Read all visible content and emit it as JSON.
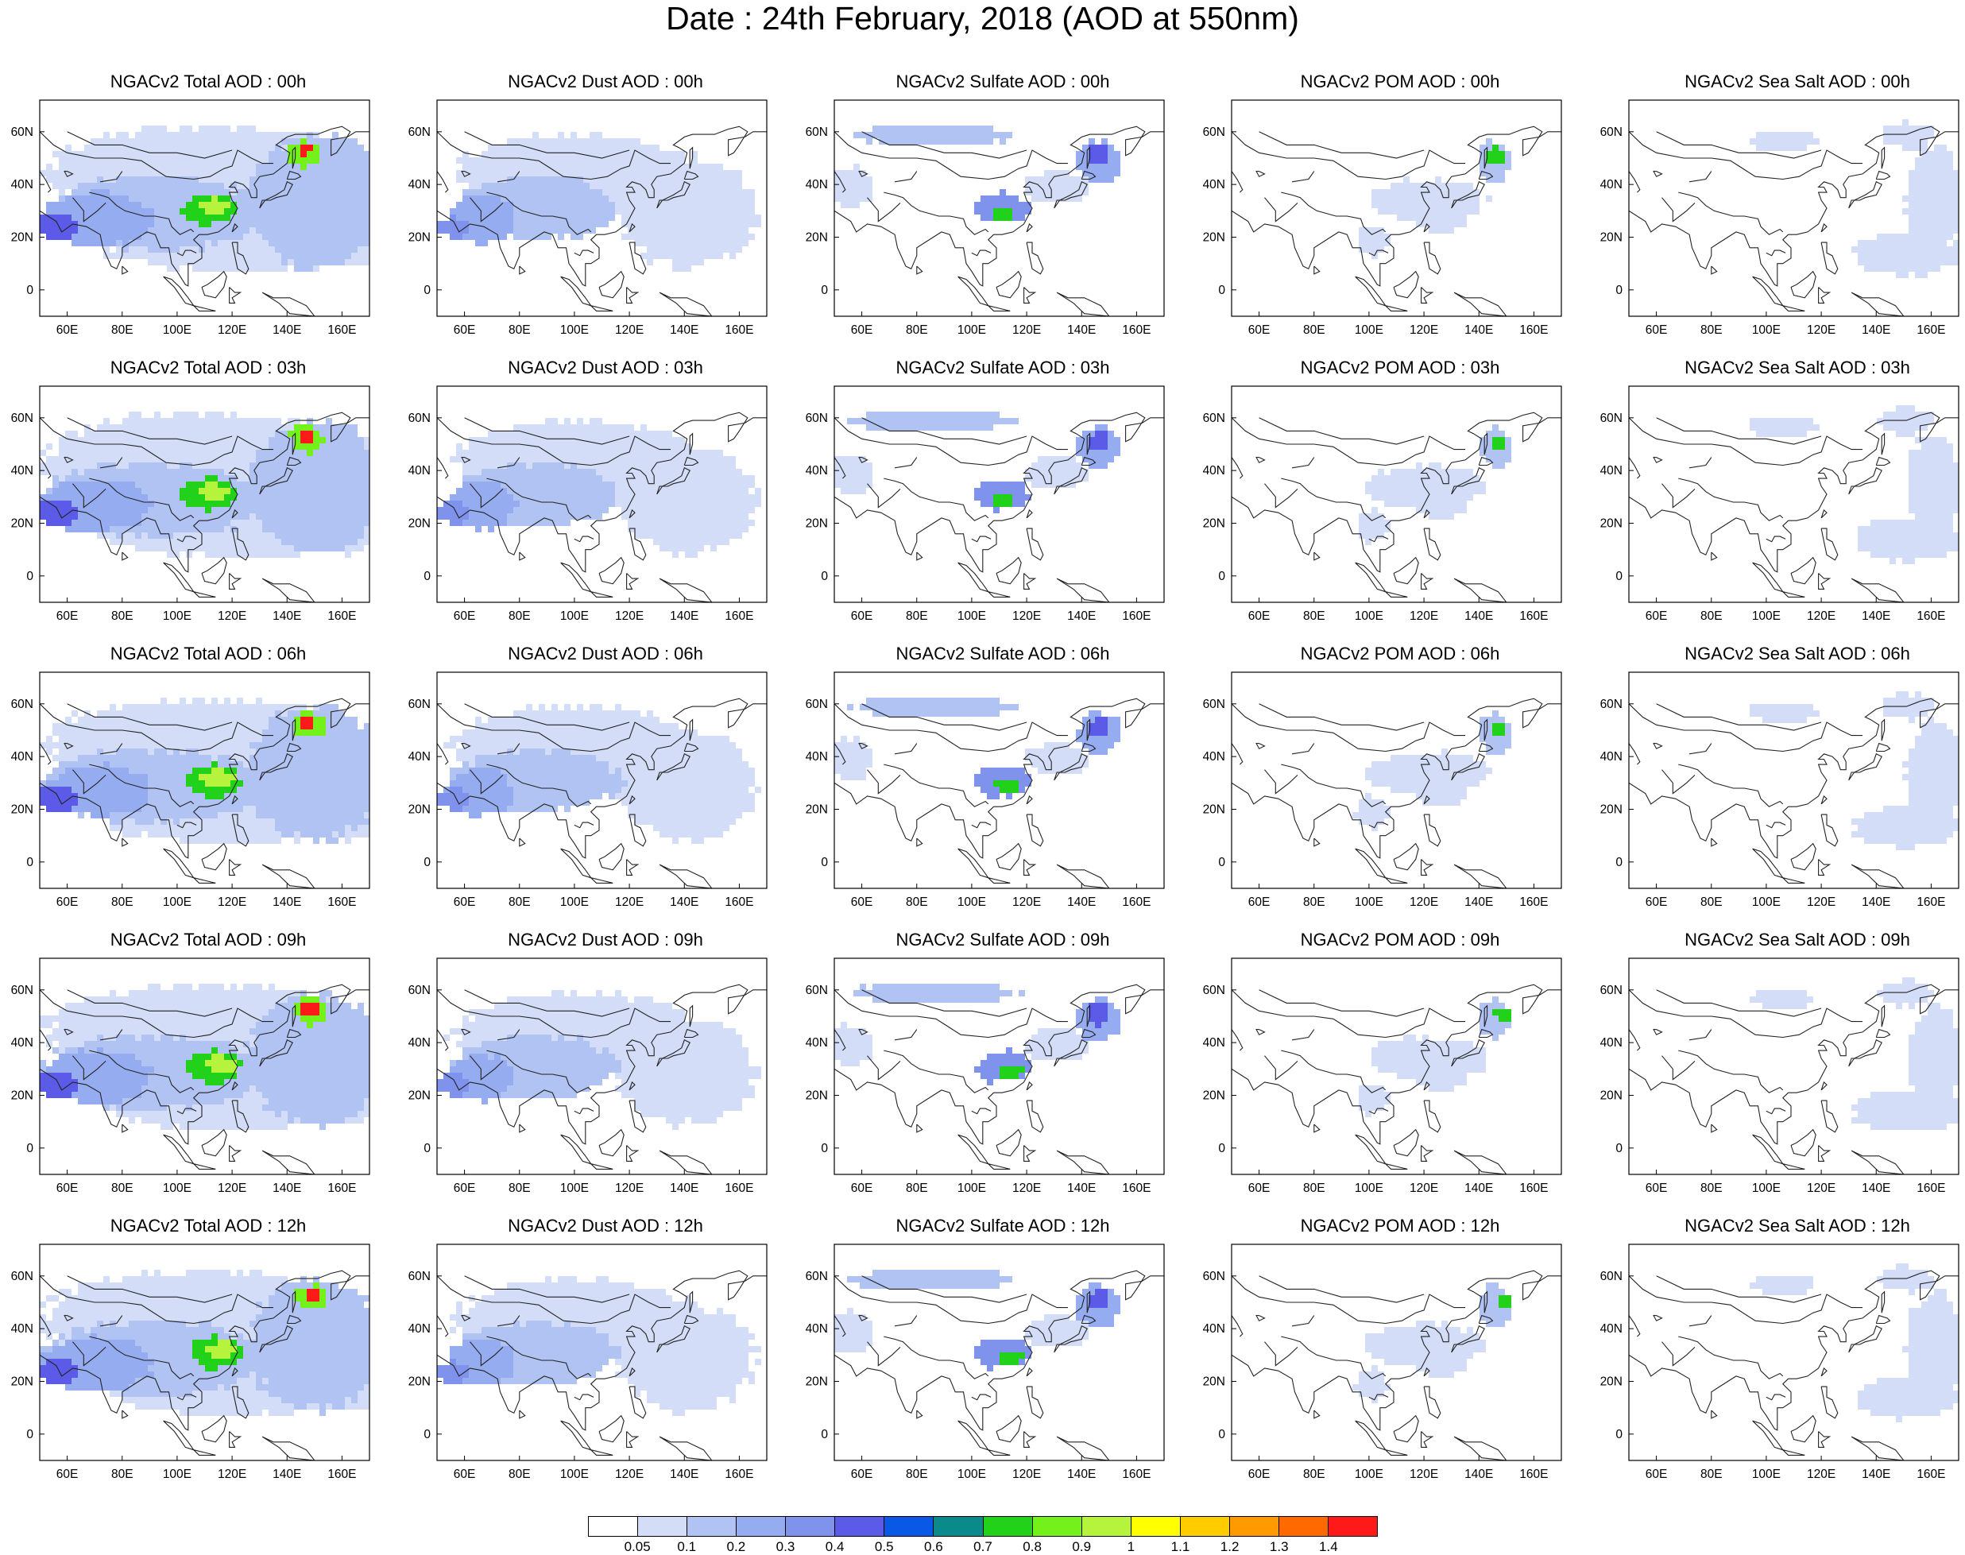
{
  "title": "Date : 24th February, 2018 (AOD at 550nm)",
  "panel_titles": [
    [
      "NGACv2 Total AOD : 00h",
      "NGACv2 Dust AOD : 00h",
      "NGACv2 Sulfate AOD : 00h",
      "NGACv2 POM AOD : 00h",
      "NGACv2 Sea Salt AOD : 00h"
    ],
    [
      "NGACv2 Total AOD : 03h",
      "NGACv2 Dust AOD : 03h",
      "NGACv2 Sulfate AOD : 03h",
      "NGACv2 POM AOD : 03h",
      "NGACv2 Sea Salt AOD : 03h"
    ],
    [
      "NGACv2 Total AOD : 06h",
      "NGACv2 Dust AOD : 06h",
      "NGACv2 Sulfate AOD : 06h",
      "NGACv2 POM AOD : 06h",
      "NGACv2 Sea Salt AOD : 06h"
    ],
    [
      "NGACv2 Total AOD : 09h",
      "NGACv2 Dust AOD : 09h",
      "NGACv2 Sulfate AOD : 09h",
      "NGACv2 POM AOD : 09h",
      "NGACv2 Sea Salt  AOD : 09h"
    ],
    [
      "NGACv2 Total AOD  : 12h",
      "NGACv2 Dust AOD : 12h",
      "NGACv2 Sulfate AOD : 12h",
      "NGACv2 POM  AOD : 12h",
      "NGACv2 Sea Salt  AOD : 12h"
    ]
  ],
  "x_ticks": [
    "60E",
    "80E",
    "100E",
    "120E",
    "140E",
    "160E"
  ],
  "y_ticks": [
    "60N",
    "40N",
    "20N",
    "0"
  ],
  "colorbar": {
    "colors": [
      "#ffffff",
      "#d3ddf8",
      "#b1c3f3",
      "#96acf0",
      "#7f93ec",
      "#5b5be8",
      "#0a59e6",
      "#0a8a8a",
      "#21d11a",
      "#74f11a",
      "#b5f33c",
      "#ffff00",
      "#ffcc00",
      "#ff9a00",
      "#ff6a00",
      "#ff1a1a"
    ],
    "labels": [
      "0.05",
      "0.1",
      "0.2",
      "0.3",
      "0.4",
      "0.5",
      "0.6",
      "0.7",
      "0.8",
      "0.9",
      "1",
      "1.1",
      "1.2",
      "1.3",
      "1.4"
    ]
  }
}
